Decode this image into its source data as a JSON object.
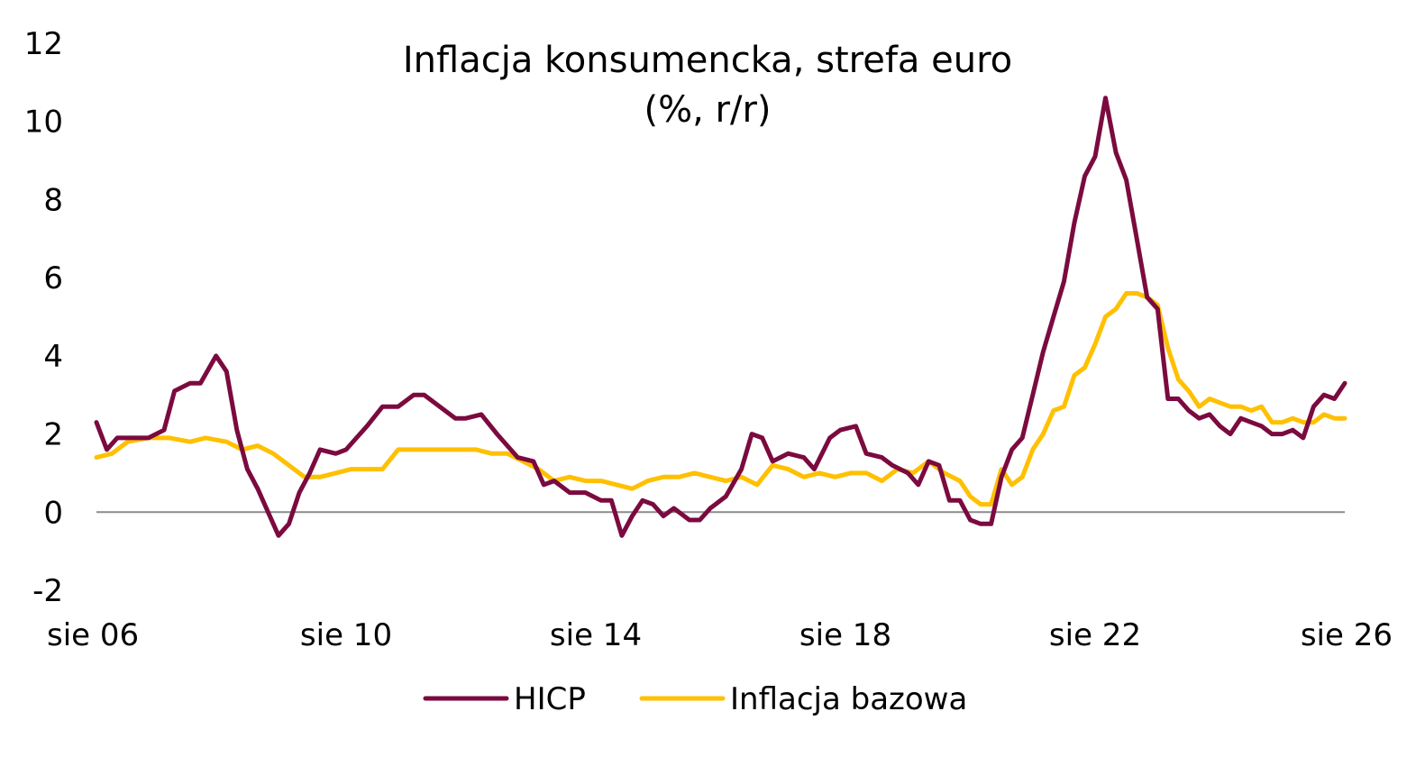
{
  "chart_data": {
    "type": "line",
    "title": "Inflacja konsumencka, strefa euro",
    "subtitle": "(%, r/r)",
    "xlabel": "",
    "ylabel": "",
    "ylim": [
      -2,
      12
    ],
    "yticks": [
      "-2",
      "0",
      "2",
      "4",
      "6",
      "8",
      "10",
      "12"
    ],
    "xticks": [
      "sie 06",
      "sie 10",
      "sie 14",
      "sie 18",
      "sie 22",
      "sie 26"
    ],
    "xlim": [
      "2006-08",
      "2026-08"
    ],
    "grid": false,
    "zero_line": true,
    "legend_position": "bottom",
    "series": [
      {
        "name": "HICP",
        "color": "#7b0a3f",
        "points": [
          [
            "2006-08",
            2.3
          ],
          [
            "2006-10",
            1.6
          ],
          [
            "2006-12",
            1.9
          ],
          [
            "2007-03",
            1.9
          ],
          [
            "2007-06",
            1.9
          ],
          [
            "2007-09",
            2.1
          ],
          [
            "2007-11",
            3.1
          ],
          [
            "2008-02",
            3.3
          ],
          [
            "2008-04",
            3.3
          ],
          [
            "2008-07",
            4.0
          ],
          [
            "2008-09",
            3.6
          ],
          [
            "2008-11",
            2.1
          ],
          [
            "2009-01",
            1.1
          ],
          [
            "2009-03",
            0.6
          ],
          [
            "2009-05",
            0.0
          ],
          [
            "2009-07",
            -0.6
          ],
          [
            "2009-09",
            -0.3
          ],
          [
            "2009-11",
            0.5
          ],
          [
            "2010-01",
            1.0
          ],
          [
            "2010-03",
            1.6
          ],
          [
            "2010-06",
            1.5
          ],
          [
            "2010-08",
            1.6
          ],
          [
            "2010-10",
            1.9
          ],
          [
            "2010-12",
            2.2
          ],
          [
            "2011-03",
            2.7
          ],
          [
            "2011-06",
            2.7
          ],
          [
            "2011-09",
            3.0
          ],
          [
            "2011-11",
            3.0
          ],
          [
            "2012-02",
            2.7
          ],
          [
            "2012-05",
            2.4
          ],
          [
            "2012-07",
            2.4
          ],
          [
            "2012-10",
            2.5
          ],
          [
            "2013-01",
            2.0
          ],
          [
            "2013-03",
            1.7
          ],
          [
            "2013-05",
            1.4
          ],
          [
            "2013-08",
            1.3
          ],
          [
            "2013-10",
            0.7
          ],
          [
            "2013-12",
            0.8
          ],
          [
            "2014-03",
            0.5
          ],
          [
            "2014-06",
            0.5
          ],
          [
            "2014-09",
            0.3
          ],
          [
            "2014-11",
            0.3
          ],
          [
            "2015-01",
            -0.6
          ],
          [
            "2015-03",
            -0.1
          ],
          [
            "2015-05",
            0.3
          ],
          [
            "2015-07",
            0.2
          ],
          [
            "2015-09",
            -0.1
          ],
          [
            "2015-11",
            0.1
          ],
          [
            "2016-02",
            -0.2
          ],
          [
            "2016-04",
            -0.2
          ],
          [
            "2016-06",
            0.1
          ],
          [
            "2016-09",
            0.4
          ],
          [
            "2016-12",
            1.1
          ],
          [
            "2017-02",
            2.0
          ],
          [
            "2017-04",
            1.9
          ],
          [
            "2017-06",
            1.3
          ],
          [
            "2017-09",
            1.5
          ],
          [
            "2017-12",
            1.4
          ],
          [
            "2018-02",
            1.1
          ],
          [
            "2018-05",
            1.9
          ],
          [
            "2018-07",
            2.1
          ],
          [
            "2018-10",
            2.2
          ],
          [
            "2018-12",
            1.5
          ],
          [
            "2019-03",
            1.4
          ],
          [
            "2019-05",
            1.2
          ],
          [
            "2019-08",
            1.0
          ],
          [
            "2019-10",
            0.7
          ],
          [
            "2019-12",
            1.3
          ],
          [
            "2020-02",
            1.2
          ],
          [
            "2020-04",
            0.3
          ],
          [
            "2020-06",
            0.3
          ],
          [
            "2020-08",
            -0.2
          ],
          [
            "2020-10",
            -0.3
          ],
          [
            "2020-12",
            -0.3
          ],
          [
            "2021-02",
            0.9
          ],
          [
            "2021-04",
            1.6
          ],
          [
            "2021-06",
            1.9
          ],
          [
            "2021-08",
            3.0
          ],
          [
            "2021-10",
            4.1
          ],
          [
            "2021-12",
            5.0
          ],
          [
            "2022-02",
            5.9
          ],
          [
            "2022-04",
            7.4
          ],
          [
            "2022-06",
            8.6
          ],
          [
            "2022-08",
            9.1
          ],
          [
            "2022-10",
            10.6
          ],
          [
            "2022-12",
            9.2
          ],
          [
            "2023-02",
            8.5
          ],
          [
            "2023-04",
            7.0
          ],
          [
            "2023-06",
            5.5
          ],
          [
            "2023-08",
            5.2
          ],
          [
            "2023-10",
            2.9
          ],
          [
            "2023-12",
            2.9
          ],
          [
            "2024-02",
            2.6
          ],
          [
            "2024-04",
            2.4
          ],
          [
            "2024-06",
            2.5
          ],
          [
            "2024-08",
            2.2
          ],
          [
            "2024-10",
            2.0
          ],
          [
            "2024-12",
            2.4
          ],
          [
            "2025-02",
            2.3
          ],
          [
            "2025-04",
            2.2
          ],
          [
            "2025-06",
            2.0
          ],
          [
            "2025-08",
            2.0
          ],
          [
            "2025-10",
            2.1
          ],
          [
            "2025-12",
            1.9
          ],
          [
            "2026-02",
            2.7
          ],
          [
            "2026-04",
            3.0
          ],
          [
            "2026-06",
            2.9
          ],
          [
            "2026-08",
            3.3
          ]
        ]
      },
      {
        "name": "Inflacja bazowa",
        "color": "#ffc000",
        "points": [
          [
            "2006-08",
            1.4
          ],
          [
            "2006-11",
            1.5
          ],
          [
            "2007-02",
            1.8
          ],
          [
            "2007-06",
            1.9
          ],
          [
            "2007-10",
            1.9
          ],
          [
            "2008-02",
            1.8
          ],
          [
            "2008-05",
            1.9
          ],
          [
            "2008-09",
            1.8
          ],
          [
            "2008-12",
            1.6
          ],
          [
            "2009-03",
            1.7
          ],
          [
            "2009-06",
            1.5
          ],
          [
            "2009-09",
            1.2
          ],
          [
            "2009-12",
            0.9
          ],
          [
            "2010-03",
            0.9
          ],
          [
            "2010-06",
            1.0
          ],
          [
            "2010-09",
            1.1
          ],
          [
            "2010-12",
            1.1
          ],
          [
            "2011-03",
            1.1
          ],
          [
            "2011-06",
            1.6
          ],
          [
            "2011-09",
            1.6
          ],
          [
            "2011-12",
            1.6
          ],
          [
            "2012-03",
            1.6
          ],
          [
            "2012-06",
            1.6
          ],
          [
            "2012-09",
            1.6
          ],
          [
            "2012-12",
            1.5
          ],
          [
            "2013-03",
            1.5
          ],
          [
            "2013-06",
            1.3
          ],
          [
            "2013-09",
            1.1
          ],
          [
            "2013-12",
            0.8
          ],
          [
            "2014-03",
            0.9
          ],
          [
            "2014-06",
            0.8
          ],
          [
            "2014-09",
            0.8
          ],
          [
            "2014-12",
            0.7
          ],
          [
            "2015-03",
            0.6
          ],
          [
            "2015-06",
            0.8
          ],
          [
            "2015-09",
            0.9
          ],
          [
            "2015-12",
            0.9
          ],
          [
            "2016-03",
            1.0
          ],
          [
            "2016-06",
            0.9
          ],
          [
            "2016-09",
            0.8
          ],
          [
            "2016-12",
            0.9
          ],
          [
            "2017-03",
            0.7
          ],
          [
            "2017-06",
            1.2
          ],
          [
            "2017-09",
            1.1
          ],
          [
            "2017-12",
            0.9
          ],
          [
            "2018-03",
            1.0
          ],
          [
            "2018-06",
            0.9
          ],
          [
            "2018-09",
            1.0
          ],
          [
            "2018-12",
            1.0
          ],
          [
            "2019-03",
            0.8
          ],
          [
            "2019-06",
            1.1
          ],
          [
            "2019-09",
            1.0
          ],
          [
            "2019-12",
            1.3
          ],
          [
            "2020-03",
            1.0
          ],
          [
            "2020-06",
            0.8
          ],
          [
            "2020-08",
            0.4
          ],
          [
            "2020-10",
            0.2
          ],
          [
            "2020-12",
            0.2
          ],
          [
            "2021-02",
            1.1
          ],
          [
            "2021-04",
            0.7
          ],
          [
            "2021-06",
            0.9
          ],
          [
            "2021-08",
            1.6
          ],
          [
            "2021-10",
            2.0
          ],
          [
            "2021-12",
            2.6
          ],
          [
            "2022-02",
            2.7
          ],
          [
            "2022-04",
            3.5
          ],
          [
            "2022-06",
            3.7
          ],
          [
            "2022-08",
            4.3
          ],
          [
            "2022-10",
            5.0
          ],
          [
            "2022-12",
            5.2
          ],
          [
            "2023-02",
            5.6
          ],
          [
            "2023-04",
            5.6
          ],
          [
            "2023-06",
            5.5
          ],
          [
            "2023-08",
            5.3
          ],
          [
            "2023-10",
            4.2
          ],
          [
            "2023-12",
            3.4
          ],
          [
            "2024-02",
            3.1
          ],
          [
            "2024-04",
            2.7
          ],
          [
            "2024-06",
            2.9
          ],
          [
            "2024-08",
            2.8
          ],
          [
            "2024-10",
            2.7
          ],
          [
            "2024-12",
            2.7
          ],
          [
            "2025-02",
            2.6
          ],
          [
            "2025-04",
            2.7
          ],
          [
            "2025-06",
            2.3
          ],
          [
            "2025-08",
            2.3
          ],
          [
            "2025-10",
            2.4
          ],
          [
            "2025-12",
            2.3
          ],
          [
            "2026-02",
            2.3
          ],
          [
            "2026-04",
            2.5
          ],
          [
            "2026-06",
            2.4
          ],
          [
            "2026-08",
            2.4
          ]
        ]
      }
    ]
  }
}
